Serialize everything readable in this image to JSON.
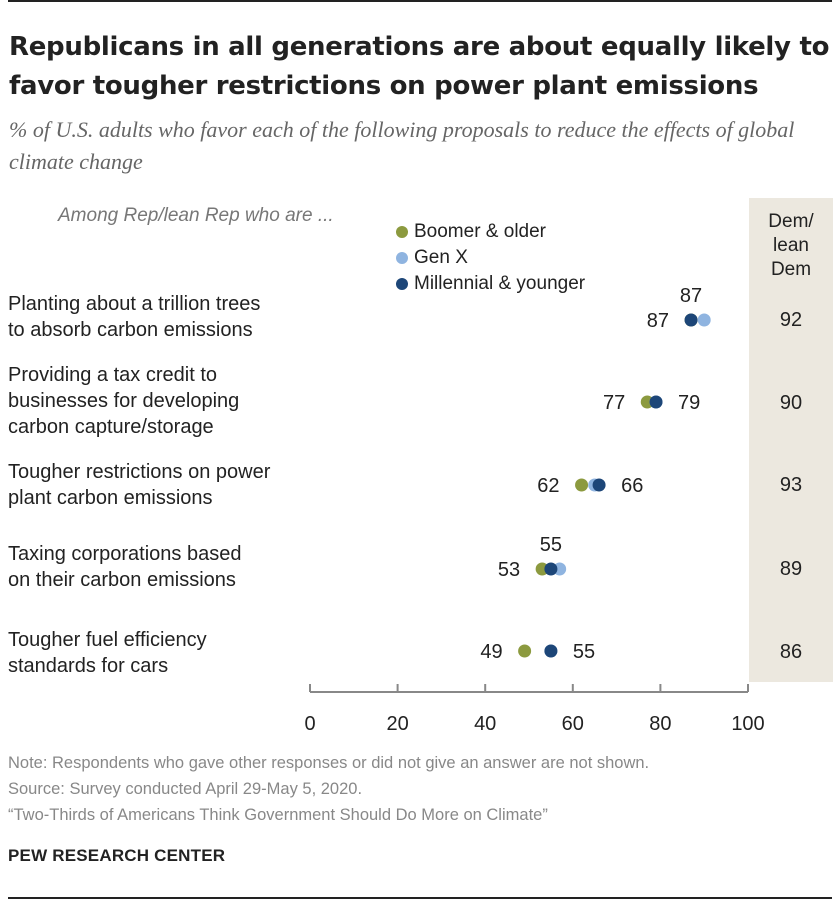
{
  "title": "Republicans in all generations are about equally likely to favor tougher restrictions on power plant emissions",
  "subtitle": "% of U.S. adults who favor each of the following proposals to reduce the effects of global climate change",
  "among_label": "Among Rep/lean Rep who are ...",
  "dem_header": [
    "Dem/",
    "lean",
    "Dem"
  ],
  "legend": [
    {
      "name": "Boomer & older",
      "color": "#8c9a3f"
    },
    {
      "name": "Gen X",
      "color": "#8fb4e0"
    },
    {
      "name": "Millennial & younger",
      "color": "#1d4678"
    }
  ],
  "chart_data": {
    "type": "dot",
    "x_ticks": [
      "0",
      "20",
      "40",
      "60",
      "80",
      "100"
    ],
    "xlim": [
      0,
      100
    ],
    "series": [
      {
        "name": "Boomer & older",
        "color": "#8c9a3f"
      },
      {
        "name": "Gen X",
        "color": "#8fb4e0"
      },
      {
        "name": "Millennial & younger",
        "color": "#1d4678"
      }
    ],
    "rows": [
      {
        "label": [
          "Planting about a trillion trees",
          "to absorb carbon emissions"
        ],
        "boomer": 87,
        "genx": 90,
        "millennial": 87,
        "labels": [
          {
            "text": "87",
            "pos": "above",
            "value": 87
          },
          {
            "text": "87",
            "pos": "left",
            "value": 87
          }
        ],
        "dem": "92"
      },
      {
        "label": [
          "Providing a tax credit to",
          "businesses for developing",
          "carbon capture/storage"
        ],
        "boomer": 77,
        "genx": 79,
        "millennial": 79,
        "labels": [
          {
            "text": "77",
            "pos": "left",
            "value": 77
          },
          {
            "text": "79",
            "pos": "right",
            "value": 79
          }
        ],
        "dem": "90"
      },
      {
        "label": [
          "Tougher restrictions on power",
          "plant carbon emissions"
        ],
        "boomer": 62,
        "genx": 65,
        "millennial": 66,
        "labels": [
          {
            "text": "62",
            "pos": "left",
            "value": 62
          },
          {
            "text": "66",
            "pos": "right",
            "value": 66
          }
        ],
        "dem": "93"
      },
      {
        "label": [
          "Taxing corporations based",
          "on their carbon emissions"
        ],
        "boomer": 53,
        "genx": 57,
        "millennial": 55,
        "labels": [
          {
            "text": "55",
            "pos": "above",
            "value": 55
          },
          {
            "text": "53",
            "pos": "left",
            "value": 53
          }
        ],
        "dem": "89"
      },
      {
        "label": [
          "Tougher fuel efficiency",
          "standards for cars"
        ],
        "boomer": 49,
        "genx": 55,
        "millennial": 55,
        "labels": [
          {
            "text": "49",
            "pos": "left",
            "value": 49
          },
          {
            "text": "55",
            "pos": "right",
            "value": 55
          }
        ],
        "dem": "86"
      }
    ]
  },
  "notes": [
    "Note: Respondents who gave other responses or did not give an answer are not shown.",
    "Source: Survey conducted April 29-May 5, 2020.",
    "“Two-Thirds of Americans Think Government Should Do More on Climate”"
  ],
  "brand": "PEW RESEARCH CENTER"
}
